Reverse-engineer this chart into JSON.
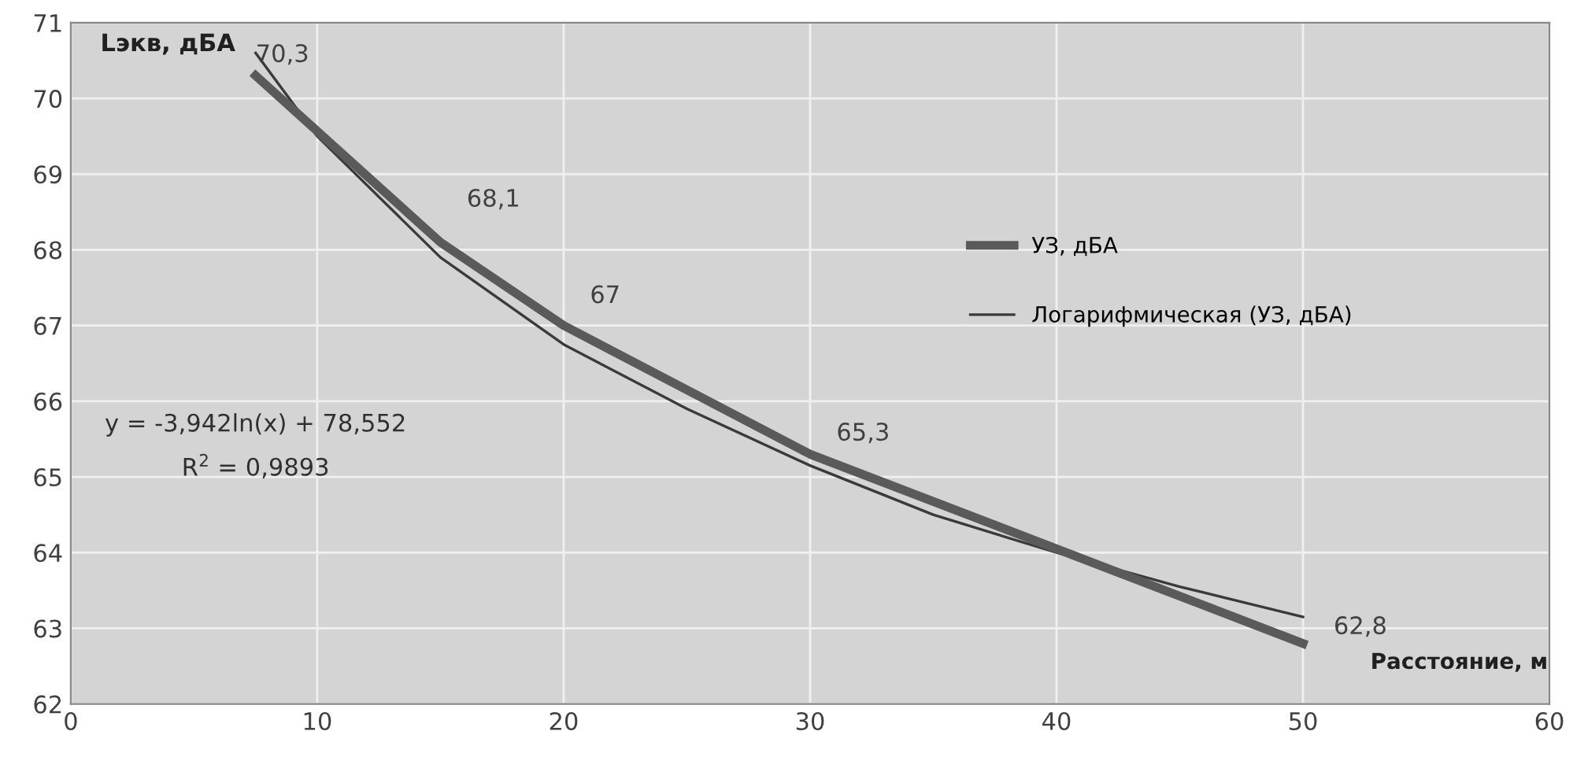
{
  "chart_data": {
    "type": "line",
    "xlabel": "Расстояние, м",
    "ylabel": "Lэкв, дБА",
    "xlim": [
      0,
      60
    ],
    "xticks": [
      0,
      10,
      20,
      30,
      40,
      50,
      60
    ],
    "ylim": [
      62,
      71
    ],
    "yticks": [
      62,
      63,
      64,
      65,
      66,
      67,
      68,
      69,
      70,
      71
    ],
    "grid": true,
    "legend": "right",
    "marker": "none",
    "series": [
      {
        "name": "УЗ, дБА",
        "color": "#5a5a5a",
        "x": [
          7.5,
          15,
          20,
          30,
          50
        ],
        "values": [
          70.3,
          68.1,
          67,
          65.3,
          62.8
        ],
        "value_labels": [
          "70,3",
          "68,1",
          "67",
          "65,3",
          "62,8"
        ]
      },
      {
        "name": "Логарифмическая (УЗ, дБА)",
        "color": "#3a3a3a",
        "type": "line",
        "x": [
          7.5,
          10,
          15,
          20,
          25,
          30,
          35,
          40,
          45,
          50
        ],
        "values": [
          70.6,
          69.5,
          67.9,
          66.75,
          65.9,
          65.15,
          64.5,
          64.0,
          63.55,
          63.15
        ]
      }
    ],
    "annotations": [
      "y = -3,942ln(x) + 78,552",
      "R$^{2}$ = 0,9893"
    ]
  }
}
